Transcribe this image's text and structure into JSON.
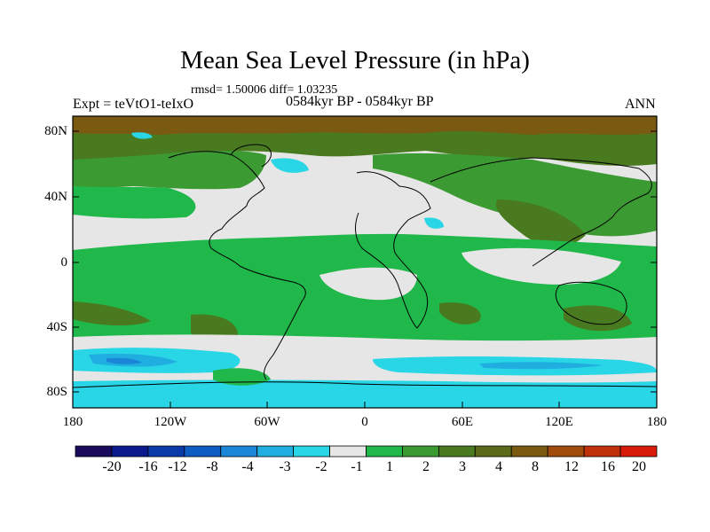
{
  "title": "Mean Sea Level Pressure (in hPa)",
  "stats": "rmsd= 1.50006 diff= 1.03235",
  "experiment": "Expt = teVtO1-teIxO",
  "period": "0584kyr BP - 0584kyr BP",
  "season": "ANN",
  "axes": {
    "lat_labels": [
      "80N",
      "40N",
      "0",
      "40S",
      "80S"
    ],
    "lon_labels": [
      "180",
      "120W",
      "60W",
      "0",
      "60E",
      "120E",
      "180"
    ]
  },
  "colorbar": {
    "labels": [
      "-20",
      "-16",
      "-12",
      "-8",
      "-4",
      "-3",
      "-2",
      "-1",
      "1",
      "2",
      "3",
      "4",
      "8",
      "12",
      "16",
      "20"
    ],
    "colors": [
      "#1a0a5c",
      "#0a1a8c",
      "#0a3aa8",
      "#0c5cc4",
      "#1a86d8",
      "#20aee0",
      "#28d6e6",
      "#e6e6e6",
      "#20b84a",
      "#3c9a32",
      "#4a7a20",
      "#5a6a18",
      "#7a5a10",
      "#a04a0c",
      "#c0300a",
      "#d81a0a"
    ]
  },
  "legend_colors": {
    "neutral": "#e6e6e6",
    "pos1": "#20b84a",
    "pos2": "#3c9a32",
    "pos3": "#4a7a20",
    "pos4": "#7a5a10",
    "neg1": "#28d6e6",
    "neg2": "#20aee0",
    "neg3": "#1a86d8"
  }
}
